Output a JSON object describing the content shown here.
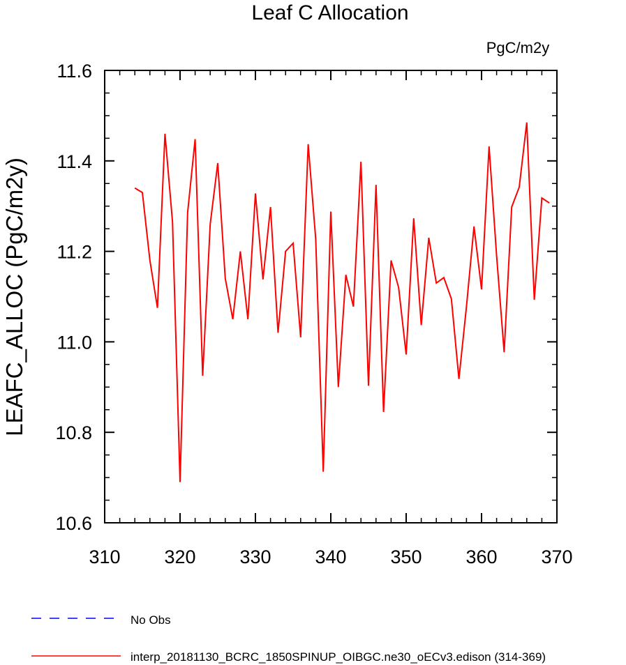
{
  "chart_data": {
    "type": "line",
    "title": "Leaf C Allocation",
    "units": "PgC/m2y",
    "xlabel": "",
    "ylabel": "LEAFC_ALLOC  (PgC/m2y)",
    "xlim": [
      310,
      370
    ],
    "ylim": [
      10.6,
      11.6
    ],
    "x_ticks": [
      310,
      320,
      330,
      340,
      350,
      360,
      370
    ],
    "y_ticks": [
      10.6,
      10.8,
      11.0,
      11.2,
      11.4,
      11.6
    ],
    "y_tick_labels": [
      "10.6",
      "10.8",
      "11.0",
      "11.2",
      "11.4",
      "11.6"
    ],
    "grid": false,
    "legend_position": "bottom-left",
    "series": [
      {
        "name": "No Obs",
        "color": "#0000ff",
        "dash": true,
        "x": [],
        "y": []
      },
      {
        "name": "interp_20181130_BCRC_1850SPINUP_OIBGC.ne30_oECv3.edison (314-369)",
        "color": "#ff0000",
        "dash": false,
        "x": [
          314,
          315,
          316,
          317,
          318,
          319,
          320,
          321,
          322,
          323,
          324,
          325,
          326,
          327,
          328,
          329,
          330,
          331,
          332,
          333,
          334,
          335,
          336,
          337,
          338,
          339,
          340,
          341,
          342,
          343,
          344,
          345,
          346,
          347,
          348,
          349,
          350,
          351,
          352,
          353,
          354,
          355,
          356,
          357,
          358,
          359,
          360,
          361,
          362,
          363,
          364,
          365,
          366,
          367,
          368,
          369
        ],
        "y": [
          11.34,
          11.33,
          11.18,
          11.075,
          11.46,
          11.265,
          10.69,
          11.285,
          11.448,
          10.925,
          11.26,
          11.395,
          11.14,
          11.05,
          11.2,
          11.05,
          11.328,
          11.138,
          11.298,
          11.02,
          11.2,
          11.218,
          11.01,
          11.437,
          11.227,
          10.713,
          11.288,
          10.9,
          11.148,
          11.078,
          11.398,
          10.903,
          11.347,
          10.845,
          11.18,
          11.12,
          10.972,
          11.273,
          11.037,
          11.23,
          11.13,
          11.142,
          11.095,
          10.918,
          11.078,
          11.255,
          11.116,
          11.432,
          11.19,
          10.977,
          11.298,
          11.342,
          11.485,
          11.093,
          11.318,
          11.307
        ]
      }
    ]
  }
}
